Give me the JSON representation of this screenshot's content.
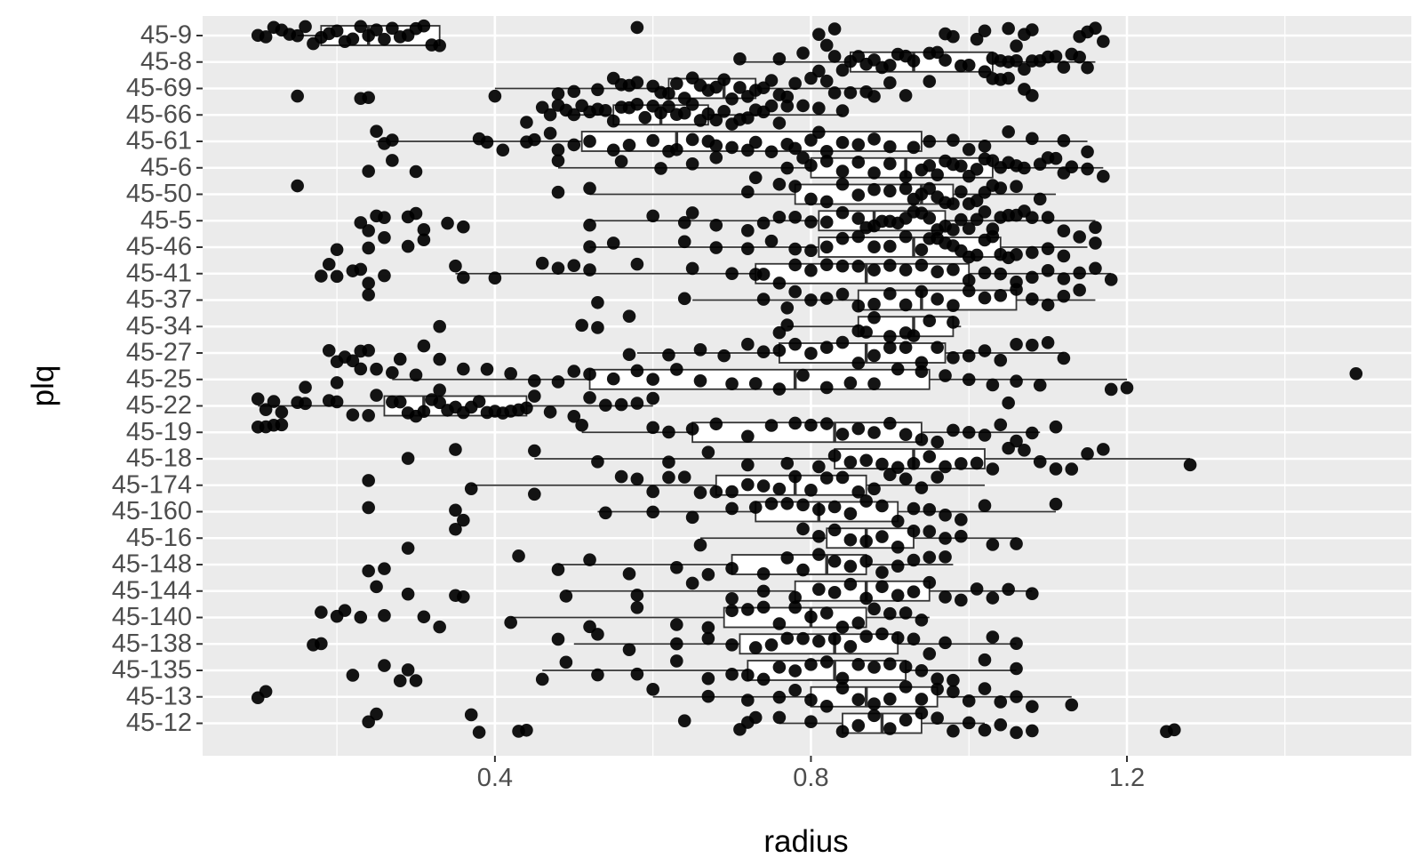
{
  "chart_data": {
    "type": "boxplot",
    "xlabel": "radius",
    "ylabel": "plq",
    "xlim": [
      0.03,
      1.56
    ],
    "x_ticks": [
      0.4,
      0.8,
      1.2
    ],
    "x_tick_labels": [
      "0.4",
      "0.8",
      "1.2"
    ],
    "minor_ticks": [
      0.2,
      0.6,
      1.0,
      1.4
    ],
    "grid": true,
    "colors": {
      "panel": "#ebebeb",
      "grid": "#ffffff",
      "points": "#000000",
      "box_line": "#333333"
    },
    "categories": [
      "45-9",
      "45-8",
      "45-69",
      "45-66",
      "45-61",
      "45-6",
      "45-50",
      "45-5",
      "45-46",
      "45-41",
      "45-37",
      "45-34",
      "45-27",
      "45-25",
      "45-22",
      "45-19",
      "45-18",
      "45-174",
      "45-160",
      "45-16",
      "45-148",
      "45-144",
      "45-140",
      "45-138",
      "45-135",
      "45-13",
      "45-12"
    ],
    "boxes": [
      {
        "category": "45-9",
        "min": 0.15,
        "q1": 0.18,
        "median": 0.24,
        "q3": 0.33,
        "max": 0.33
      },
      {
        "category": "45-8",
        "min": 0.71,
        "q1": 0.85,
        "median": 0.93,
        "q3": 1.03,
        "max": 1.16
      },
      {
        "category": "45-69",
        "min": 0.4,
        "q1": 0.62,
        "median": 0.69,
        "q3": 0.73,
        "max": 0.9
      },
      {
        "category": "45-66",
        "min": 0.49,
        "q1": 0.55,
        "median": 0.61,
        "q3": 0.67,
        "max": 0.84
      },
      {
        "category": "45-61",
        "min": 0.25,
        "q1": 0.51,
        "median": 0.63,
        "q3": 0.94,
        "max": 1.15
      },
      {
        "category": "45-6",
        "min": 0.48,
        "q1": 0.8,
        "median": 0.92,
        "q3": 1.03,
        "max": 1.17
      },
      {
        "category": "45-50",
        "min": 0.52,
        "q1": 0.78,
        "median": 0.94,
        "q3": 0.98,
        "max": 1.11
      },
      {
        "category": "45-5",
        "min": 0.52,
        "q1": 0.81,
        "median": 0.88,
        "q3": 0.97,
        "max": 1.16
      },
      {
        "category": "45-46",
        "min": 0.52,
        "q1": 0.81,
        "median": 0.93,
        "q3": 1.04,
        "max": 1.15
      },
      {
        "category": "45-41",
        "min": 0.35,
        "q1": 0.73,
        "median": 0.87,
        "q3": 1.0,
        "max": 1.18
      },
      {
        "category": "45-37",
        "min": 0.65,
        "q1": 0.86,
        "median": 0.94,
        "q3": 1.06,
        "max": 1.16
      },
      {
        "category": "45-34",
        "min": 0.77,
        "q1": 0.86,
        "median": 0.93,
        "q3": 0.98,
        "max": 0.99
      },
      {
        "category": "45-27",
        "min": 0.58,
        "q1": 0.76,
        "median": 0.87,
        "q3": 0.97,
        "max": 1.12
      },
      {
        "category": "45-25",
        "min": 0.27,
        "q1": 0.52,
        "median": 0.78,
        "q3": 0.95,
        "max": 1.2
      },
      {
        "category": "45-22",
        "min": 0.1,
        "q1": 0.26,
        "median": 0.31,
        "q3": 0.44,
        "max": 0.6
      },
      {
        "category": "45-19",
        "min": 0.51,
        "q1": 0.65,
        "median": 0.83,
        "q3": 0.94,
        "max": 1.09
      },
      {
        "category": "45-18",
        "min": 0.45,
        "q1": 0.83,
        "median": 0.93,
        "q3": 1.02,
        "max": 1.28
      },
      {
        "category": "45-174",
        "min": 0.37,
        "q1": 0.68,
        "median": 0.78,
        "q3": 0.87,
        "max": 1.02
      },
      {
        "category": "45-160",
        "min": 0.53,
        "q1": 0.73,
        "median": 0.81,
        "q3": 0.91,
        "max": 1.11
      },
      {
        "category": "45-16",
        "min": 0.66,
        "q1": 0.82,
        "median": 0.87,
        "q3": 0.93,
        "max": 1.06
      },
      {
        "category": "45-148",
        "min": 0.48,
        "q1": 0.7,
        "median": 0.82,
        "q3": 0.87,
        "max": 0.98
      },
      {
        "category": "45-144",
        "min": 0.49,
        "q1": 0.78,
        "median": 0.87,
        "q3": 0.95,
        "max": 1.08
      },
      {
        "category": "45-140",
        "min": 0.42,
        "q1": 0.69,
        "median": 0.8,
        "q3": 0.87,
        "max": 0.95
      },
      {
        "category": "45-138",
        "min": 0.5,
        "q1": 0.71,
        "median": 0.83,
        "q3": 0.91,
        "max": 1.06
      },
      {
        "category": "45-135",
        "min": 0.46,
        "q1": 0.72,
        "median": 0.83,
        "q3": 0.92,
        "max": 1.06
      },
      {
        "category": "45-13",
        "min": 0.6,
        "q1": 0.8,
        "median": 0.87,
        "q3": 0.96,
        "max": 1.13
      },
      {
        "category": "45-12",
        "min": 0.76,
        "q1": 0.84,
        "median": 0.89,
        "q3": 0.94,
        "max": 1.02
      }
    ],
    "points": {
      "45-9": [
        0.1,
        0.11,
        0.12,
        0.13,
        0.14,
        0.15,
        0.16,
        0.17,
        0.18,
        0.19,
        0.2,
        0.21,
        0.22,
        0.23,
        0.24,
        0.25,
        0.26,
        0.27,
        0.28,
        0.29,
        0.3,
        0.31,
        0.32,
        0.33,
        0.58,
        0.81,
        0.82,
        0.83,
        0.97,
        0.98,
        1.01,
        1.02,
        1.05,
        1.06,
        1.07,
        1.08,
        1.14,
        1.15,
        1.16,
        1.17
      ],
      "45-8": [
        0.71,
        0.76,
        0.79,
        0.81,
        0.83,
        0.84,
        0.85,
        0.86,
        0.87,
        0.88,
        0.89,
        0.9,
        0.91,
        0.92,
        0.93,
        0.95,
        0.96,
        0.97,
        0.99,
        1.0,
        1.02,
        1.03,
        1.04,
        1.05,
        1.06,
        1.07,
        1.08,
        1.09,
        1.1,
        1.11,
        1.12,
        1.13,
        1.14,
        1.15
      ],
      "45-69": [
        0.15,
        0.23,
        0.24,
        0.4,
        0.48,
        0.5,
        0.53,
        0.55,
        0.56,
        0.57,
        0.58,
        0.6,
        0.61,
        0.62,
        0.63,
        0.64,
        0.65,
        0.66,
        0.67,
        0.68,
        0.69,
        0.7,
        0.71,
        0.72,
        0.73,
        0.74,
        0.75,
        0.76,
        0.77,
        0.78,
        0.8,
        0.82,
        0.83,
        0.85,
        0.87,
        0.88,
        0.9,
        0.92,
        0.95,
        1.03,
        1.04,
        1.05,
        1.07,
        1.08
      ],
      "45-66": [
        0.44,
        0.46,
        0.47,
        0.48,
        0.49,
        0.5,
        0.51,
        0.52,
        0.53,
        0.54,
        0.55,
        0.56,
        0.57,
        0.58,
        0.59,
        0.6,
        0.61,
        0.62,
        0.63,
        0.64,
        0.65,
        0.66,
        0.67,
        0.68,
        0.69,
        0.7,
        0.71,
        0.72,
        0.73,
        0.74,
        0.75,
        0.76,
        0.77,
        0.79,
        0.81,
        0.84
      ],
      "45-61": [
        0.25,
        0.26,
        0.27,
        0.38,
        0.39,
        0.41,
        0.44,
        0.45,
        0.47,
        0.48,
        0.5,
        0.52,
        0.55,
        0.57,
        0.6,
        0.62,
        0.63,
        0.65,
        0.67,
        0.68,
        0.7,
        0.72,
        0.73,
        0.75,
        0.77,
        0.78,
        0.8,
        0.81,
        0.82,
        0.84,
        0.86,
        0.88,
        0.9,
        0.93,
        0.95,
        0.98,
        1.0,
        1.02,
        1.05,
        1.08,
        1.12,
        1.15
      ],
      "45-6": [
        0.24,
        0.27,
        0.3,
        0.48,
        0.56,
        0.61,
        0.65,
        0.68,
        0.73,
        0.77,
        0.79,
        0.8,
        0.82,
        0.84,
        0.86,
        0.88,
        0.9,
        0.92,
        0.94,
        0.95,
        0.96,
        0.97,
        0.98,
        0.99,
        1.0,
        1.01,
        1.02,
        1.03,
        1.04,
        1.05,
        1.06,
        1.07,
        1.09,
        1.1,
        1.11,
        1.12,
        1.13,
        1.15,
        1.17
      ],
      "45-50": [
        0.15,
        0.48,
        0.52,
        0.72,
        0.76,
        0.78,
        0.8,
        0.82,
        0.84,
        0.86,
        0.88,
        0.9,
        0.92,
        0.93,
        0.94,
        0.95,
        0.96,
        0.97,
        0.98,
        0.99,
        1.0,
        1.01,
        1.02,
        1.03,
        1.04,
        1.06,
        1.09
      ],
      "45-5": [
        0.23,
        0.24,
        0.25,
        0.26,
        0.29,
        0.3,
        0.31,
        0.34,
        0.36,
        0.52,
        0.6,
        0.64,
        0.65,
        0.68,
        0.72,
        0.74,
        0.76,
        0.78,
        0.8,
        0.82,
        0.84,
        0.86,
        0.87,
        0.88,
        0.89,
        0.9,
        0.91,
        0.92,
        0.93,
        0.94,
        0.95,
        0.96,
        0.97,
        0.98,
        0.99,
        1.0,
        1.01,
        1.02,
        1.03,
        1.04,
        1.05,
        1.06,
        1.07,
        1.08,
        1.1,
        1.12,
        1.16
      ],
      "45-46": [
        0.2,
        0.24,
        0.26,
        0.29,
        0.31,
        0.52,
        0.55,
        0.64,
        0.68,
        0.72,
        0.75,
        0.78,
        0.8,
        0.82,
        0.84,
        0.86,
        0.88,
        0.9,
        0.92,
        0.94,
        0.95,
        0.96,
        0.97,
        0.98,
        0.99,
        1.0,
        1.01,
        1.02,
        1.03,
        1.04,
        1.05,
        1.06,
        1.08,
        1.1,
        1.12,
        1.14,
        1.16
      ],
      "45-41": [
        0.18,
        0.19,
        0.2,
        0.22,
        0.23,
        0.24,
        0.26,
        0.35,
        0.36,
        0.4,
        0.46,
        0.48,
        0.5,
        0.52,
        0.58,
        0.65,
        0.7,
        0.73,
        0.74,
        0.76,
        0.78,
        0.8,
        0.82,
        0.84,
        0.86,
        0.88,
        0.9,
        0.92,
        0.94,
        0.96,
        0.98,
        1.0,
        1.02,
        1.04,
        1.06,
        1.08,
        1.1,
        1.12,
        1.14,
        1.16,
        1.18
      ],
      "45-37": [
        0.24,
        0.53,
        0.64,
        0.74,
        0.77,
        0.78,
        0.8,
        0.82,
        0.84,
        0.86,
        0.88,
        0.9,
        0.92,
        0.94,
        0.96,
        0.98,
        1.0,
        1.02,
        1.04,
        1.06,
        1.08,
        1.1,
        1.12,
        1.14
      ],
      "45-34": [
        0.33,
        0.51,
        0.53,
        0.57,
        0.76,
        0.77,
        0.86,
        0.87,
        0.88,
        0.9,
        0.92,
        0.93,
        0.95,
        0.98
      ],
      "45-27": [
        0.19,
        0.2,
        0.21,
        0.22,
        0.23,
        0.24,
        0.28,
        0.31,
        0.33,
        0.57,
        0.62,
        0.66,
        0.69,
        0.72,
        0.74,
        0.76,
        0.78,
        0.8,
        0.82,
        0.84,
        0.86,
        0.88,
        0.9,
        0.92,
        0.94,
        0.96,
        0.98,
        1.0,
        1.02,
        1.04,
        1.06,
        1.08,
        1.1,
        1.12
      ],
      "45-25": [
        0.16,
        0.2,
        0.23,
        0.25,
        0.27,
        0.3,
        0.33,
        0.36,
        0.39,
        0.42,
        0.45,
        0.48,
        0.5,
        0.52,
        0.55,
        0.58,
        0.6,
        0.63,
        0.66,
        0.7,
        0.73,
        0.76,
        0.79,
        0.82,
        0.85,
        0.88,
        0.91,
        0.94,
        0.97,
        1.0,
        1.03,
        1.06,
        1.09,
        1.18,
        1.2,
        1.49
      ],
      "45-22": [
        0.1,
        0.11,
        0.12,
        0.13,
        0.15,
        0.16,
        0.19,
        0.2,
        0.22,
        0.24,
        0.25,
        0.27,
        0.28,
        0.29,
        0.3,
        0.31,
        0.32,
        0.33,
        0.34,
        0.35,
        0.36,
        0.37,
        0.38,
        0.39,
        0.4,
        0.41,
        0.42,
        0.43,
        0.44,
        0.45,
        0.47,
        0.5,
        0.52,
        0.54,
        0.56,
        0.58,
        0.6,
        1.05
      ],
      "45-19": [
        0.1,
        0.11,
        0.12,
        0.13,
        0.51,
        0.6,
        0.62,
        0.65,
        0.68,
        0.72,
        0.75,
        0.78,
        0.8,
        0.82,
        0.84,
        0.86,
        0.88,
        0.9,
        0.92,
        0.94,
        0.96,
        0.98,
        1.0,
        1.02,
        1.04,
        1.06,
        1.08,
        1.11
      ],
      "45-18": [
        0.29,
        0.35,
        0.45,
        0.53,
        0.62,
        0.67,
        0.72,
        0.77,
        0.81,
        0.83,
        0.85,
        0.87,
        0.89,
        0.91,
        0.93,
        0.95,
        0.97,
        0.99,
        1.01,
        1.03,
        1.05,
        1.07,
        1.09,
        1.11,
        1.13,
        1.15,
        1.17,
        1.28
      ],
      "45-174": [
        0.24,
        0.37,
        0.45,
        0.56,
        0.58,
        0.6,
        0.62,
        0.64,
        0.66,
        0.68,
        0.7,
        0.72,
        0.74,
        0.76,
        0.78,
        0.8,
        0.82,
        0.84,
        0.86,
        0.88,
        0.9,
        0.92,
        0.94,
        0.96
      ],
      "45-160": [
        0.24,
        0.35,
        0.36,
        0.54,
        0.6,
        0.65,
        0.7,
        0.73,
        0.75,
        0.77,
        0.79,
        0.81,
        0.83,
        0.85,
        0.87,
        0.89,
        0.91,
        0.93,
        0.95,
        0.97,
        0.99,
        1.02,
        1.11
      ],
      "45-16": [
        0.29,
        0.35,
        0.66,
        0.79,
        0.81,
        0.83,
        0.85,
        0.87,
        0.89,
        0.91,
        0.93,
        0.95,
        0.97,
        0.99,
        1.03,
        1.06
      ],
      "45-148": [
        0.24,
        0.26,
        0.43,
        0.48,
        0.52,
        0.57,
        0.63,
        0.67,
        0.7,
        0.74,
        0.77,
        0.79,
        0.81,
        0.83,
        0.85,
        0.87,
        0.89,
        0.91,
        0.93,
        0.95,
        0.97
      ],
      "45-144": [
        0.25,
        0.29,
        0.35,
        0.36,
        0.49,
        0.58,
        0.65,
        0.7,
        0.74,
        0.78,
        0.81,
        0.83,
        0.85,
        0.87,
        0.89,
        0.91,
        0.93,
        0.95,
        0.97,
        0.99,
        1.01,
        1.03,
        1.05,
        1.08
      ],
      "45-140": [
        0.18,
        0.2,
        0.21,
        0.23,
        0.26,
        0.31,
        0.33,
        0.42,
        0.52,
        0.58,
        0.63,
        0.67,
        0.7,
        0.72,
        0.74,
        0.76,
        0.78,
        0.8,
        0.82,
        0.84,
        0.86,
        0.88,
        0.9,
        0.92,
        0.94
      ],
      "45-138": [
        0.17,
        0.18,
        0.48,
        0.53,
        0.57,
        0.63,
        0.67,
        0.7,
        0.73,
        0.75,
        0.77,
        0.79,
        0.81,
        0.83,
        0.85,
        0.87,
        0.89,
        0.91,
        0.93,
        0.95,
        0.97,
        1.03,
        1.06
      ],
      "45-135": [
        0.22,
        0.26,
        0.28,
        0.29,
        0.3,
        0.46,
        0.49,
        0.53,
        0.58,
        0.63,
        0.67,
        0.7,
        0.72,
        0.74,
        0.76,
        0.78,
        0.8,
        0.82,
        0.84,
        0.86,
        0.88,
        0.9,
        0.92,
        0.94,
        0.96,
        0.98,
        1.02,
        1.06
      ],
      "45-13": [
        0.1,
        0.11,
        0.6,
        0.67,
        0.72,
        0.76,
        0.78,
        0.8,
        0.82,
        0.84,
        0.86,
        0.88,
        0.9,
        0.92,
        0.94,
        0.96,
        0.98,
        1.0,
        1.02,
        1.04,
        1.06,
        1.08,
        1.13
      ],
      "45-12": [
        0.24,
        0.25,
        0.37,
        0.38,
        0.43,
        0.44,
        0.64,
        0.71,
        0.72,
        0.73,
        0.76,
        0.8,
        0.84,
        0.86,
        0.88,
        0.9,
        0.92,
        0.94,
        0.96,
        0.98,
        1.0,
        1.02,
        1.04,
        1.06,
        1.08,
        1.25,
        1.26
      ]
    }
  }
}
